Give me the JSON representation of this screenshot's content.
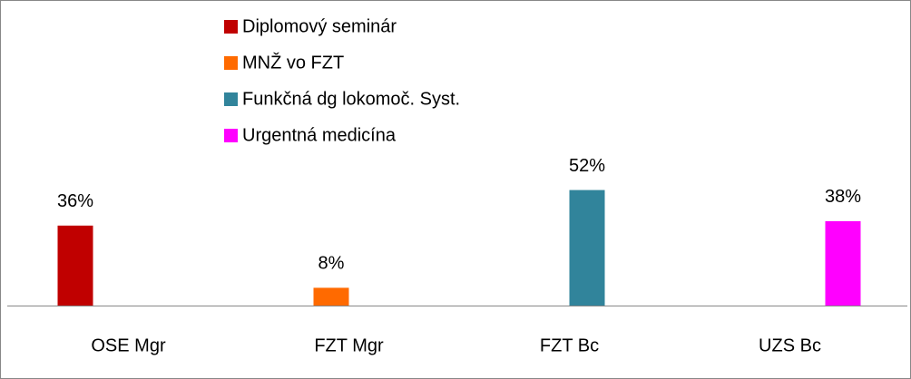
{
  "chart_data": {
    "type": "bar",
    "categories": [
      "OSE Mgr",
      "FZT Mgr",
      "FZT Bc",
      "UZS Bc"
    ],
    "series": [
      {
        "name": "Diplomový seminár",
        "color": "#c00000",
        "values": [
          36,
          null,
          null,
          null
        ],
        "value_labels": [
          "36%",
          null,
          null,
          null
        ]
      },
      {
        "name": "MNŽ vo FZT",
        "color": "#ff6a00",
        "values": [
          null,
          8,
          null,
          null
        ],
        "value_labels": [
          null,
          "8%",
          null,
          null
        ]
      },
      {
        "name": "Funkčná dg lokomoč. Syst.",
        "color": "#31849b",
        "values": [
          null,
          null,
          52,
          null
        ],
        "value_labels": [
          null,
          null,
          "52%",
          null
        ]
      },
      {
        "name": "Urgentná medicína",
        "color": "#ff00ff",
        "values": [
          null,
          null,
          null,
          38
        ],
        "value_labels": [
          null,
          null,
          null,
          "38%"
        ]
      }
    ],
    "legend": "top"
  }
}
